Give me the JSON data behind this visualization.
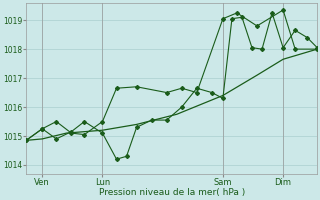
{
  "background_color": "#cce8e8",
  "grid_color": "#aacfcf",
  "line_color": "#1a5c1a",
  "title": "Pression niveau de la mer( hPa )",
  "ylim": [
    1013.7,
    1019.6
  ],
  "yticks": [
    1014,
    1015,
    1016,
    1017,
    1018,
    1019
  ],
  "day_labels": [
    "Ven",
    "Lun",
    "Sam",
    "Dim"
  ],
  "day_positions": [
    16,
    76,
    196,
    256
  ],
  "xmin": 0,
  "xmax": 290,
  "figsize": [
    3.2,
    2.0
  ],
  "dpi": 100,
  "s1_x": [
    0,
    16,
    40,
    76,
    110,
    150,
    196,
    230,
    256,
    290
  ],
  "s1_y": [
    1014.85,
    1014.9,
    1015.1,
    1015.2,
    1015.4,
    1015.75,
    1016.4,
    1017.1,
    1017.65,
    1018.0
  ],
  "s2_x": [
    0,
    16,
    30,
    45,
    58,
    76,
    90,
    100,
    110,
    125,
    140,
    155,
    170,
    185,
    196,
    205,
    215,
    225,
    235,
    245,
    256,
    268,
    280,
    290
  ],
  "s2_y": [
    1014.85,
    1015.25,
    1014.9,
    1015.15,
    1015.5,
    1015.1,
    1014.2,
    1014.3,
    1015.3,
    1015.55,
    1015.55,
    1016.0,
    1016.65,
    1016.5,
    1016.3,
    1019.05,
    1019.1,
    1018.05,
    1018.0,
    1019.25,
    1018.05,
    1018.65,
    1018.4,
    1018.05
  ],
  "s3_x": [
    0,
    16,
    30,
    45,
    58,
    76,
    90,
    110,
    140,
    155,
    170,
    196,
    210,
    230,
    256,
    268,
    290
  ],
  "s3_y": [
    1014.85,
    1015.25,
    1015.5,
    1015.1,
    1015.05,
    1015.5,
    1016.65,
    1016.7,
    1016.5,
    1016.65,
    1016.5,
    1019.05,
    1019.25,
    1018.8,
    1019.35,
    1018.0,
    1018.0
  ]
}
